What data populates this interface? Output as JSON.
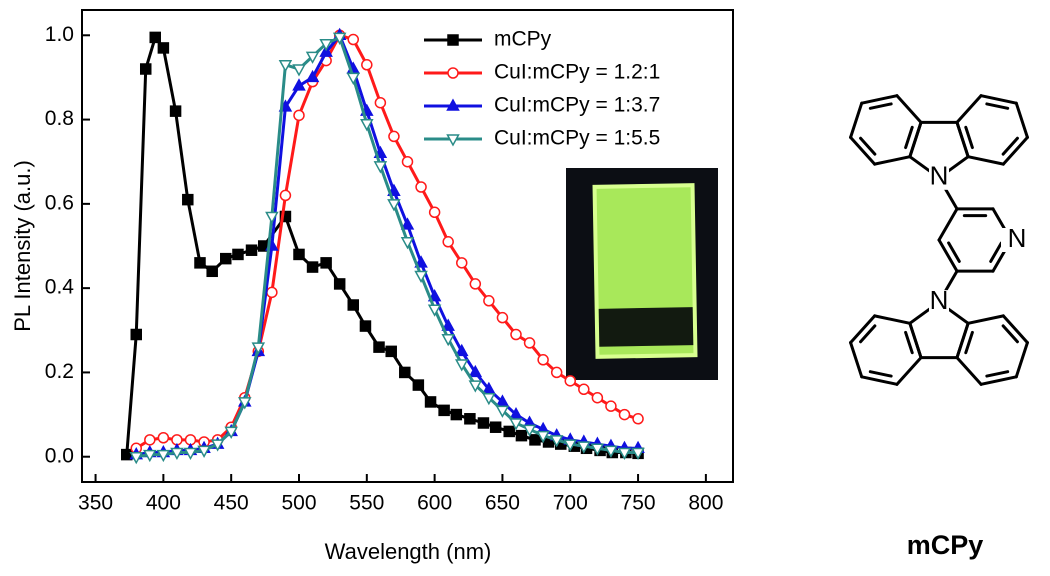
{
  "chart_data": {
    "type": "line",
    "xlabel": "Wavelength (nm)",
    "ylabel": "PL Intensity (a.u.)",
    "xlim": [
      340,
      820
    ],
    "ylim": [
      -0.06,
      1.06
    ],
    "xticks": [
      350,
      400,
      450,
      500,
      550,
      600,
      650,
      700,
      750,
      800
    ],
    "yticks": [
      {
        "value": 0,
        "label": "0.0"
      },
      0.2,
      0.4,
      0.6,
      0.8,
      {
        "value": 1,
        "label": "1.0"
      }
    ],
    "legend": "upper right",
    "series": [
      {
        "name": "mCPy",
        "color": "#000000",
        "marker": "square",
        "filled": true,
        "x": [
          373,
          380,
          387,
          394,
          400,
          409,
          418,
          427,
          436,
          446,
          455,
          465,
          474,
          490,
          500,
          510,
          520,
          530,
          540,
          549,
          559,
          568,
          578,
          588,
          597,
          607,
          616,
          626,
          636,
          645,
          655,
          664,
          674,
          684,
          693,
          703,
          712,
          722,
          731,
          741,
          750
        ],
        "values": [
          0.005,
          0.29,
          0.92,
          0.995,
          0.97,
          0.82,
          0.61,
          0.46,
          0.44,
          0.47,
          0.48,
          0.49,
          0.5,
          0.57,
          0.48,
          0.45,
          0.46,
          0.41,
          0.36,
          0.31,
          0.26,
          0.25,
          0.2,
          0.17,
          0.13,
          0.11,
          0.1,
          0.09,
          0.08,
          0.07,
          0.06,
          0.05,
          0.04,
          0.035,
          0.03,
          0.025,
          0.02,
          0.015,
          0.01,
          0.01,
          0.008
        ]
      },
      {
        "name": "CuI:mCPy = 1.2:1",
        "color": "#ff1a1a",
        "marker": "circle",
        "filled": false,
        "x": [
          380,
          390,
          400,
          410,
          420,
          430,
          440,
          450,
          460,
          470,
          480,
          490,
          500,
          510,
          520,
          530,
          540,
          550,
          560,
          570,
          580,
          590,
          600,
          610,
          620,
          630,
          640,
          650,
          660,
          670,
          680,
          690,
          700,
          710,
          720,
          730,
          740,
          750
        ],
        "values": [
          0.02,
          0.04,
          0.045,
          0.04,
          0.04,
          0.035,
          0.04,
          0.07,
          0.14,
          0.25,
          0.39,
          0.62,
          0.81,
          0.89,
          0.94,
          1.0,
          0.99,
          0.93,
          0.84,
          0.76,
          0.7,
          0.64,
          0.58,
          0.51,
          0.46,
          0.41,
          0.37,
          0.33,
          0.29,
          0.27,
          0.23,
          0.2,
          0.18,
          0.16,
          0.14,
          0.12,
          0.1,
          0.09
        ]
      },
      {
        "name": "CuI:mCPy = 1:3.7",
        "color": "#1010e0",
        "marker": "triangle-up",
        "filled": true,
        "x": [
          380,
          390,
          400,
          410,
          420,
          430,
          440,
          450,
          460,
          470,
          480,
          490,
          500,
          510,
          520,
          530,
          540,
          550,
          560,
          570,
          580,
          590,
          600,
          610,
          620,
          630,
          640,
          650,
          660,
          670,
          680,
          690,
          700,
          710,
          720,
          730,
          740,
          750
        ],
        "values": [
          0.005,
          0.01,
          0.01,
          0.015,
          0.015,
          0.02,
          0.03,
          0.06,
          0.13,
          0.25,
          0.5,
          0.83,
          0.88,
          0.9,
          0.96,
          1.0,
          0.92,
          0.82,
          0.72,
          0.63,
          0.55,
          0.46,
          0.38,
          0.31,
          0.25,
          0.2,
          0.16,
          0.13,
          0.1,
          0.08,
          0.065,
          0.05,
          0.04,
          0.035,
          0.03,
          0.025,
          0.02,
          0.02
        ]
      },
      {
        "name": "CuI:mCPy = 1:5.5",
        "color": "#2a8c88",
        "marker": "triangle-down",
        "filled": false,
        "x": [
          380,
          390,
          400,
          410,
          420,
          430,
          440,
          450,
          460,
          470,
          480,
          490,
          500,
          510,
          520,
          530,
          540,
          550,
          560,
          570,
          580,
          590,
          600,
          610,
          620,
          630,
          640,
          650,
          660,
          670,
          680,
          690,
          700,
          710,
          720,
          730,
          740,
          750
        ],
        "values": [
          0.0,
          0.005,
          0.005,
          0.01,
          0.01,
          0.015,
          0.03,
          0.06,
          0.13,
          0.26,
          0.57,
          0.93,
          0.92,
          0.95,
          0.98,
          0.995,
          0.9,
          0.79,
          0.69,
          0.6,
          0.51,
          0.43,
          0.35,
          0.28,
          0.22,
          0.17,
          0.14,
          0.11,
          0.08,
          0.065,
          0.05,
          0.04,
          0.03,
          0.025,
          0.02,
          0.015,
          0.01,
          0.01
        ]
      }
    ]
  },
  "structure": {
    "name": "mCPy",
    "atom_labels": [
      "N",
      "N",
      "N"
    ]
  }
}
